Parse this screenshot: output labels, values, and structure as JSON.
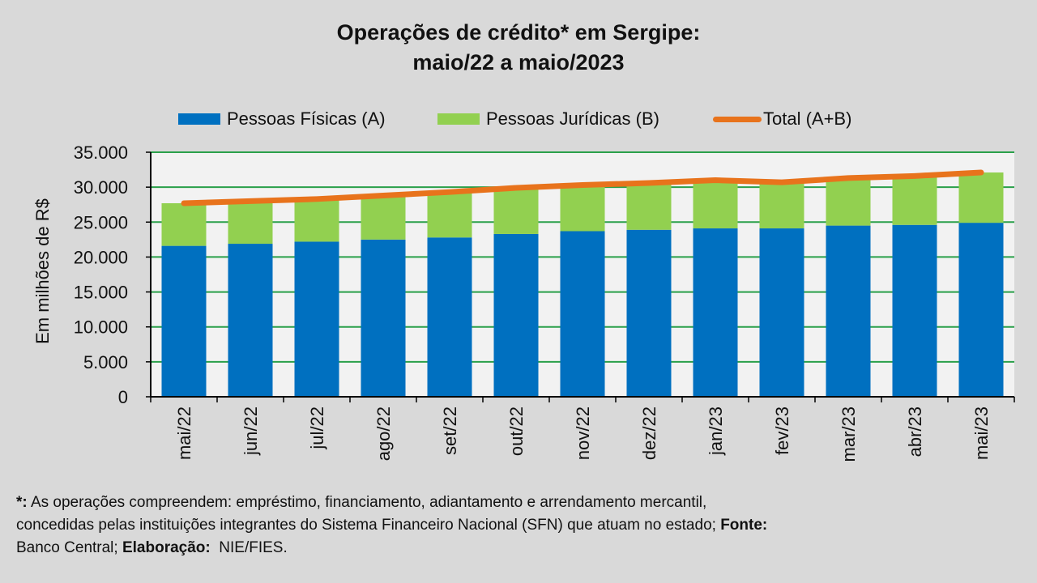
{
  "title_line1": "Operações de crédito* em Sergipe:",
  "title_line2": "maio/22 a maio/2023",
  "colors": {
    "pf": "#0070c0",
    "pj": "#92d050",
    "total": "#e8731c",
    "grid": "#2aa04a",
    "plot_bg": "#f2f2f2"
  },
  "chart_data": {
    "type": "bar",
    "stacked": true,
    "categories": [
      "mai/22",
      "jun/22",
      "jul/22",
      "ago/22",
      "set/22",
      "out/22",
      "nov/22",
      "dez/22",
      "jan/23",
      "fev/23",
      "mar/23",
      "abr/23",
      "mai/23"
    ],
    "series": [
      {
        "name": "Pessoas Físicas (A)",
        "type": "bar",
        "values": [
          21600,
          21900,
          22200,
          22500,
          22800,
          23300,
          23700,
          23900,
          24100,
          24100,
          24500,
          24600,
          24900
        ]
      },
      {
        "name": "Pessoas Jurídicas (B)",
        "type": "bar",
        "values": [
          6100,
          6100,
          6100,
          6300,
          6500,
          6600,
          6600,
          6700,
          6900,
          6600,
          6800,
          7000,
          7200
        ]
      },
      {
        "name": "Total (A+B)",
        "type": "line",
        "values": [
          27700,
          28000,
          28300,
          28800,
          29300,
          29900,
          30300,
          30600,
          31000,
          30700,
          31300,
          31600,
          32100
        ]
      }
    ],
    "ylabel": "Em milhões de R$",
    "ylim": [
      0,
      35000
    ],
    "yticks": [
      "0",
      "5.000",
      "10.000",
      "15.000",
      "20.000",
      "25.000",
      "30.000",
      "35.000"
    ],
    "grid": true,
    "legend_position": "top"
  },
  "footnote": {
    "star": "*:",
    "text1": " As operações compreendem: empréstimo, financiamento, adiantamento e arrendamento mercantil,",
    "text2": "concedidas pelas instituições integrantes do Sistema Financeiro Nacional (SFN) que atuam no estado; ",
    "source_label": "Fonte:",
    "source_value": "Banco Central; ",
    "elab_label": "Elaboração:",
    "elab_value": "  NIE/FIES."
  }
}
